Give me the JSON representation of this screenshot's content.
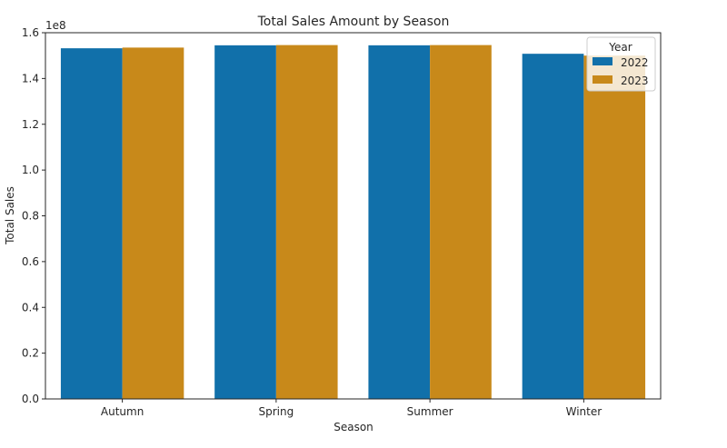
{
  "chart_data": {
    "type": "bar",
    "title": "Total Sales Amount by Season",
    "xlabel": "Season",
    "ylabel": "Total Sales",
    "scale_label": "1e8",
    "categories": [
      "Autumn",
      "Spring",
      "Summer",
      "Winter"
    ],
    "series": [
      {
        "name": "2022",
        "color": "#1170aa",
        "values": [
          153200000.0,
          154500000.0,
          154500000.0,
          150800000.0
        ]
      },
      {
        "name": "2023",
        "color": "#c8891a",
        "values": [
          153500000.0,
          154600000.0,
          154600000.0,
          150000000.0
        ]
      }
    ],
    "ylim": [
      0,
      160000000.0
    ],
    "yticks": [
      0,
      20000000.0,
      40000000.0,
      60000000.0,
      80000000.0,
      100000000.0,
      120000000.0,
      140000000.0,
      160000000.0
    ],
    "ytick_labels": [
      "0.0",
      "0.2",
      "0.4",
      "0.6",
      "0.8",
      "1.0",
      "1.2",
      "1.4",
      "1.6"
    ],
    "legend": {
      "title": "Year",
      "placement": "top-right"
    },
    "grid": false
  }
}
